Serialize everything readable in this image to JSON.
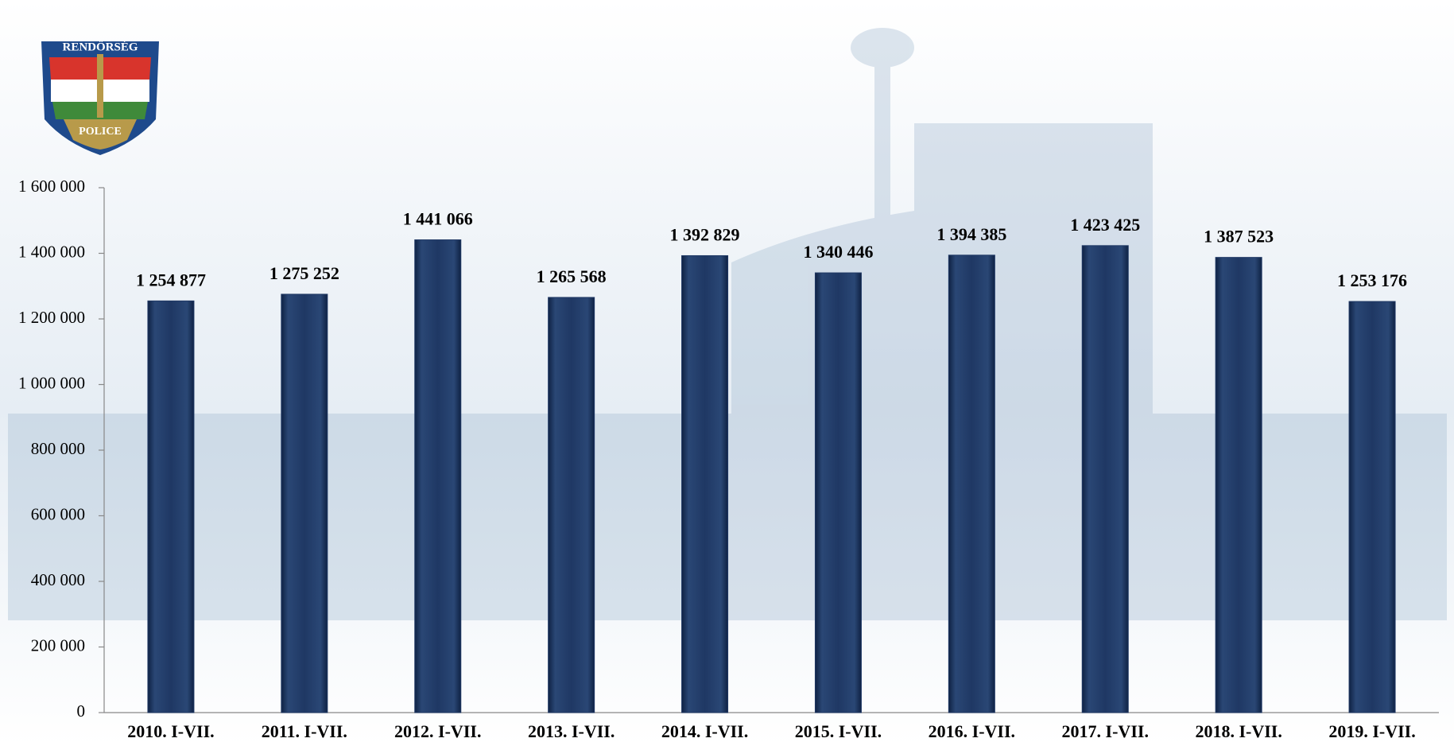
{
  "chart_data": {
    "type": "bar",
    "badge": {
      "top": "RENDŐRSÉG",
      "bottom": "POLICE"
    },
    "categories": [
      "2010. I-VII.",
      "2011. I-VII.",
      "2012. I-VII.",
      "2013. I-VII.",
      "2014. I-VII.",
      "2015. I-VII.",
      "2016. I-VII.",
      "2017. I-VII.",
      "2018. I-VII.",
      "2019. I-VII."
    ],
    "values": [
      1254877,
      1275252,
      1441066,
      1265568,
      1392829,
      1340446,
      1394385,
      1423425,
      1387523,
      1253176
    ],
    "value_labels": [
      "1 254 877",
      "1 275 252",
      "1 441 066",
      "1 265 568",
      "1 392 829",
      "1 340 446",
      "1 394 385",
      "1 423 425",
      "1 387 523",
      "1 253 176"
    ],
    "color": "#1f3864",
    "ylim": [
      0,
      1600000
    ],
    "yticks": [
      0,
      {
        "value": 200000,
        "label": "200 000"
      },
      {
        "value": 400000,
        "label": "400 000"
      },
      {
        "value": 600000,
        "label": "600 000"
      },
      {
        "value": 800000,
        "label": "800 000"
      },
      {
        "value": 1000000,
        "label": "1 000 000"
      },
      {
        "value": 1200000,
        "label": "1 200 000"
      },
      {
        "value": 1400000,
        "label": "1 400 000"
      },
      {
        "value": 1600000,
        "label": "1 600 000"
      }
    ],
    "grid": false
  }
}
